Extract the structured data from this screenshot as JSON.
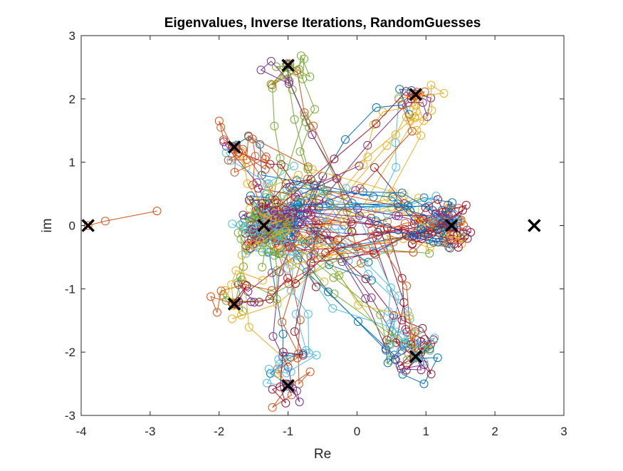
{
  "chart_data": {
    "type": "scatter",
    "title": "Eigenvalues, Inverse Iterations, RandomGuesses",
    "xlabel": "Re",
    "ylabel": "im",
    "xlim": [
      -4,
      3
    ],
    "ylim": [
      -3,
      3
    ],
    "xticks": [
      "-4",
      "-3",
      "-2",
      "-1",
      "0",
      "1",
      "2",
      "3"
    ],
    "yticks": [
      "-3",
      "-2",
      "-1",
      "0",
      "1",
      "2",
      "3"
    ],
    "grid": false,
    "legend": "none",
    "eigenvalues": {
      "x": [
        -3.9,
        -1.35,
        1.37,
        2.57,
        -1.78,
        -1.78,
        -1.0,
        -1.0,
        0.85,
        0.85
      ],
      "y": [
        0.0,
        0.0,
        0.0,
        0.0,
        1.24,
        -1.24,
        2.53,
        -2.53,
        2.07,
        -2.07
      ]
    },
    "iterations": {
      "description_count": 140,
      "colors": [
        "#0072BD",
        "#D95319",
        "#EDB120",
        "#7E2F8E",
        "#77AC30",
        "#4DBEEE",
        "#A2142F"
      ],
      "sample_paths": [
        {
          "x": [
            -2.9,
            -3.65,
            -3.9
          ],
          "y": [
            0.23,
            0.07,
            0.0
          ]
        }
      ]
    }
  }
}
